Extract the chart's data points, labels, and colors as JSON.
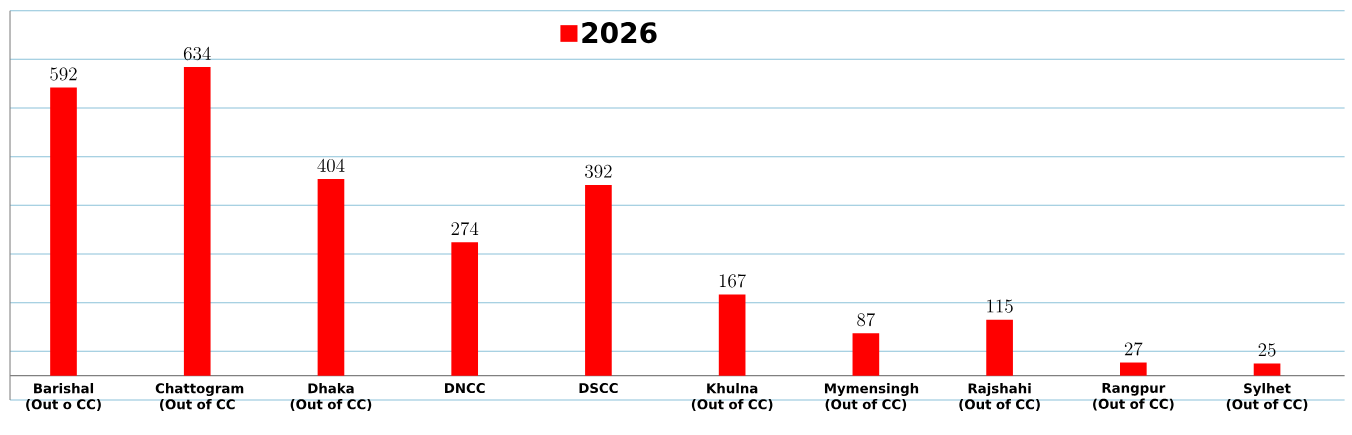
{
  "chart_data": {
    "type": "bar",
    "categories": [
      "Barishal (Out o CC)",
      "Chattogram (Out of CC",
      "Dhaka (Out of CC)",
      "DNCC",
      "DSCC",
      "Khulna (Out of CC)",
      "Mymensingh (Out of CC)",
      "Rajshahi (Out of CC)",
      "Rangpur (Out of CC)",
      "Sylhet (Out of CC)"
    ],
    "series": [
      {
        "name": "2026",
        "color": "#ff0000",
        "values": [
          592,
          634,
          404,
          274,
          392,
          167,
          87,
          115,
          27,
          25
        ]
      }
    ],
    "ylim": [
      -50,
      750
    ],
    "yticks": [
      {
        "value": -50,
        "label": null
      },
      {
        "value": 50,
        "label": null
      },
      {
        "value": 150,
        "label": null
      },
      {
        "value": 250,
        "label": null
      },
      {
        "value": 350,
        "label": null
      },
      {
        "value": 450,
        "label": null
      },
      {
        "value": 550,
        "label": null
      },
      {
        "value": 650,
        "label": null
      },
      {
        "value": 750,
        "label": null
      }
    ],
    "tick_labels": "x",
    "grid": "y",
    "legend": "top",
    "data_labels": true
  }
}
